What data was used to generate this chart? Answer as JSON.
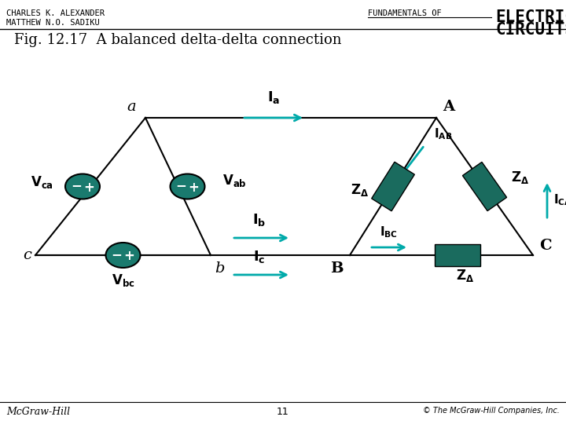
{
  "title_left1": "CHARLES K. ALEXANDER",
  "title_left2": "MATTHEW N.O. SADIKU",
  "title_right1": "FUNDAMENTALS OF",
  "title_right2": "ELECTRIC",
  "title_right3": "CIRCUITS",
  "fig_title": "Fig. 12.17  A balanced delta-delta connection",
  "footer_left": "McGraw-Hill",
  "footer_center": "11",
  "footer_right": "© The McGraw-Hill Companies, Inc.",
  "teal": "#1a7a6e",
  "dark_teal": "#1a6b5e",
  "bg_color": "#ffffff",
  "line_color": "#000000",
  "arrow_color": "#00aaaa"
}
